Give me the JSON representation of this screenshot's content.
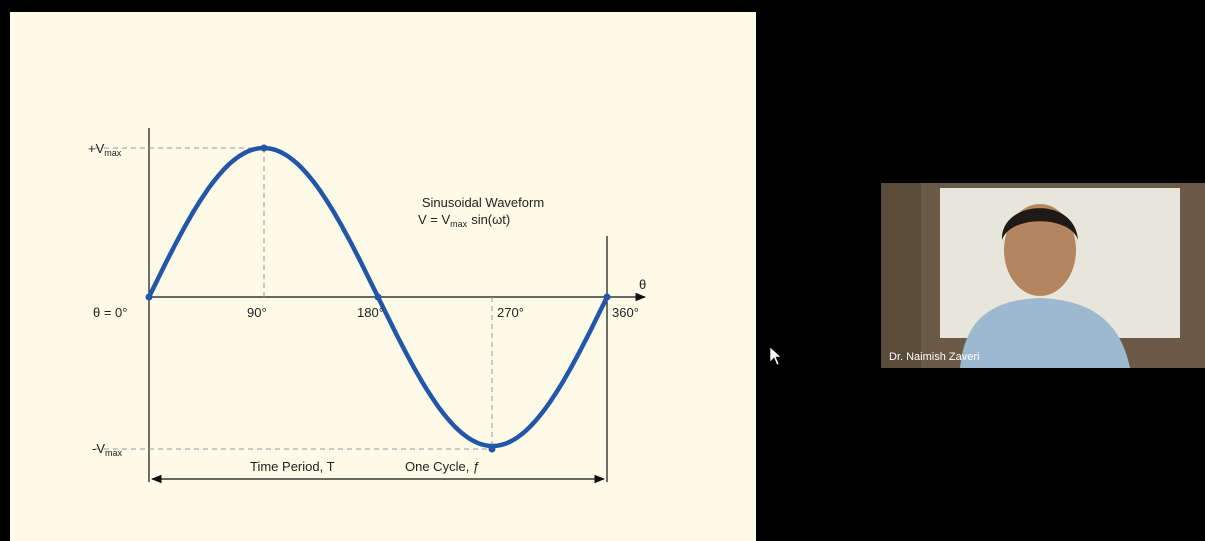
{
  "slide": {
    "y_axis_labels": {
      "positive": {
        "text": "+V",
        "subscript": "max"
      },
      "negative": {
        "text": "-V",
        "subscript": "max"
      }
    },
    "x_axis_labels": [
      "θ = 0°",
      "90°",
      "180°",
      "270°",
      "360°"
    ],
    "axis_symbol": "θ",
    "title": "Sinusoidal Waveform",
    "formula": {
      "lhs": "V = V",
      "subscript": "max",
      "rhs": "sin(ωt)"
    },
    "period_label": "Time Period, T",
    "cycle_label": "One Cycle, ƒ"
  },
  "video_tile": {
    "participant_name": "Dr. Naimish Zaveri"
  }
}
